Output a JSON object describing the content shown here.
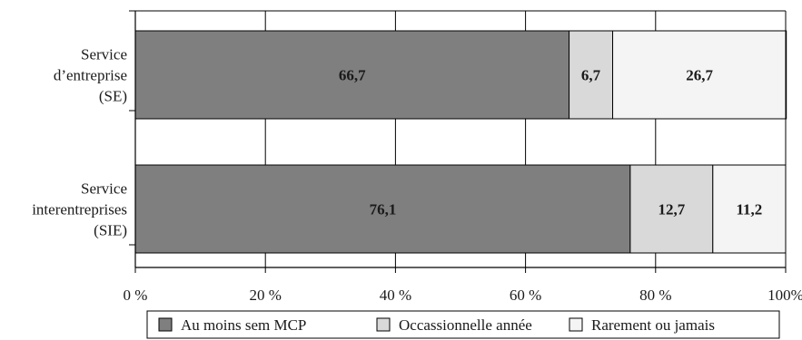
{
  "chart_data": {
    "type": "bar",
    "orientation": "horizontal",
    "stacked": true,
    "title": "",
    "xlabel": "",
    "ylabel": "",
    "xlim": [
      0,
      100
    ],
    "grid": "vertical",
    "legend_position": "bottom",
    "categories": [
      [
        "Service",
        "d’entreprise",
        "(SE)"
      ],
      [
        "Service",
        "interentreprises",
        "(SIE)"
      ]
    ],
    "x_ticks": [
      0,
      20,
      40,
      60,
      80,
      100
    ],
    "x_tick_labels": [
      "0 %",
      "20 %",
      "40 %",
      "60 %",
      "80 %",
      "100%"
    ],
    "series": [
      {
        "name": "Au moins sem MCP",
        "values": [
          66.7,
          76.1
        ],
        "labels": [
          "66,7",
          "76,1"
        ],
        "color": "#7f7f7f"
      },
      {
        "name": "Occassionnelle année",
        "values": [
          6.7,
          12.7
        ],
        "labels": [
          "6,7",
          "12,7"
        ],
        "color": "#d9d9d9"
      },
      {
        "name": "Rarement ou jamais",
        "values": [
          26.7,
          11.2
        ],
        "labels": [
          "26,7",
          "11,2"
        ],
        "color": "#f4f4f4"
      }
    ]
  }
}
